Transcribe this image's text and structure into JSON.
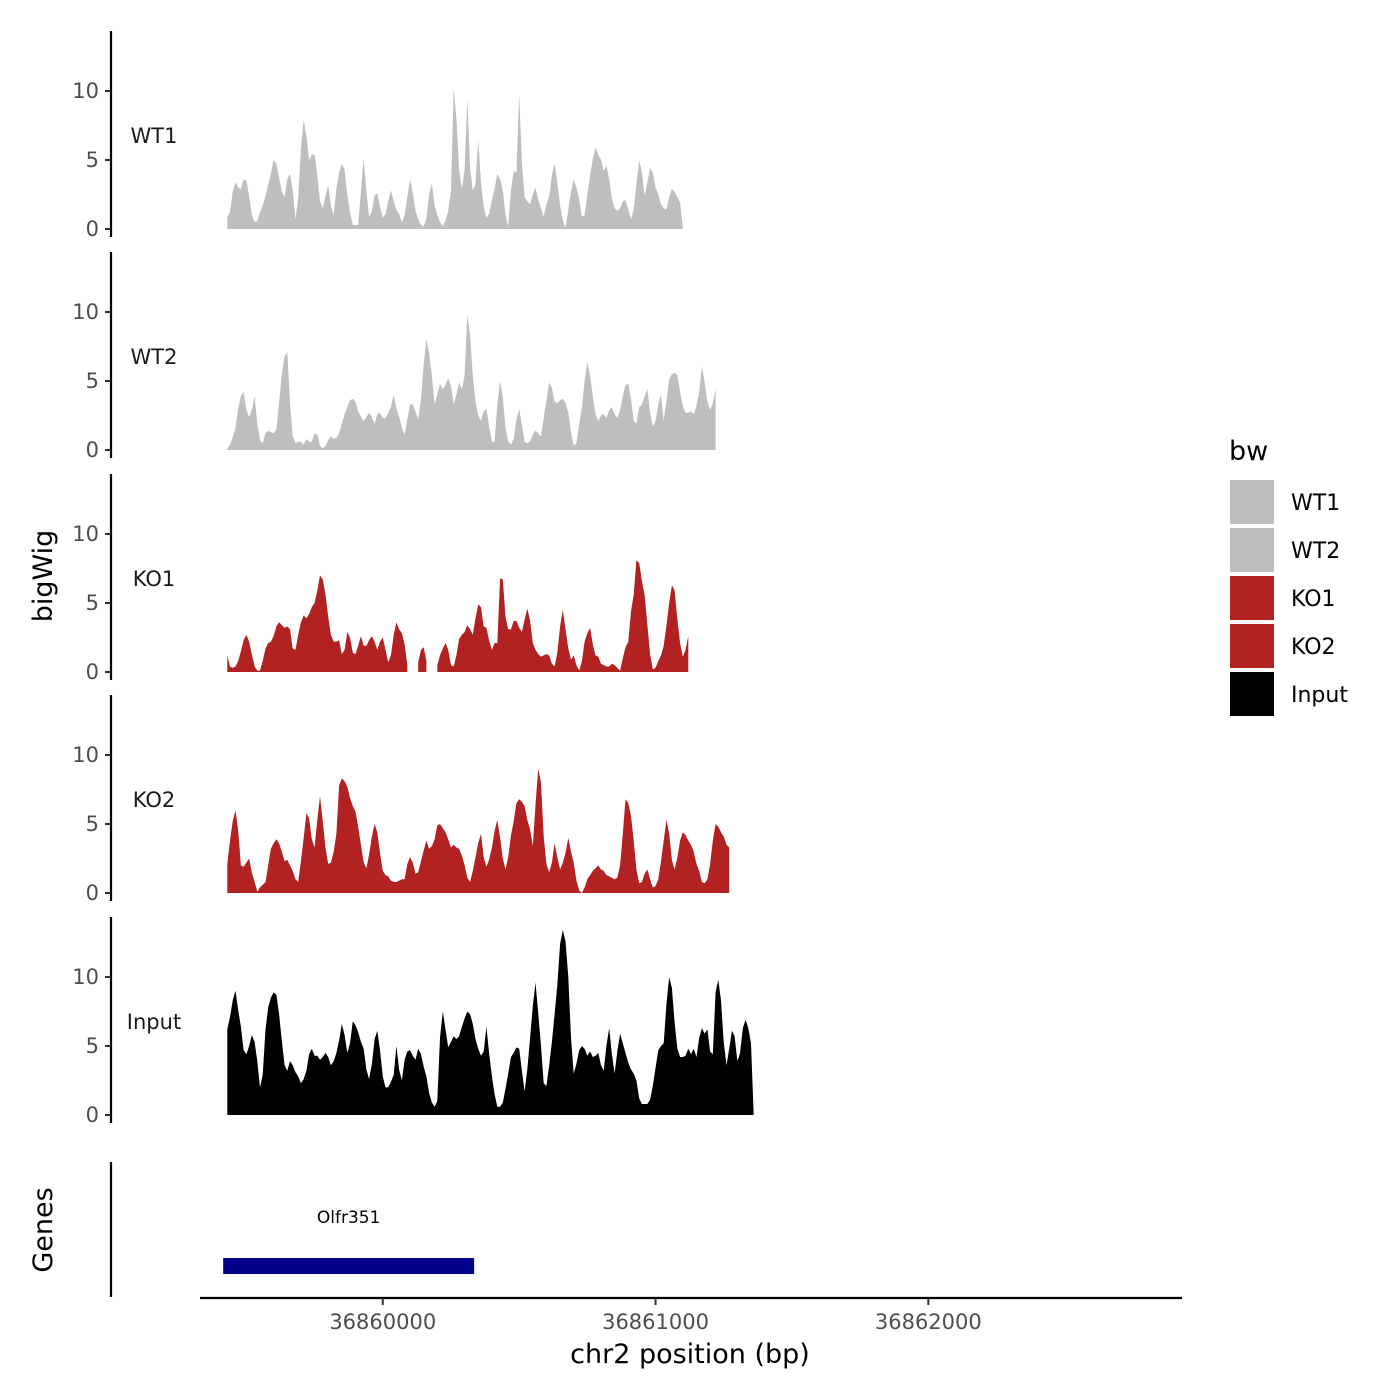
{
  "chart_data": {
    "type": "area",
    "title": "",
    "xlabel": "chr2 position (bp)",
    "ylabel": "bigWig",
    "genes_label": "Genes",
    "xlim": [
      36859330,
      36862930
    ],
    "x_ticks": [
      36860000,
      36861000,
      36862000
    ],
    "x_tick_labels": [
      "36860000",
      "36861000",
      "36862000"
    ],
    "ylim": [
      0,
      14
    ],
    "y_ticks": [
      0,
      5,
      10
    ],
    "y_tick_labels": [
      "0",
      "5",
      "10"
    ],
    "legend": {
      "title": "bw",
      "entries": [
        {
          "label": "WT1",
          "color": "#bebebe"
        },
        {
          "label": "WT2",
          "color": "#bebebe"
        },
        {
          "label": "KO1",
          "color": "#b22222"
        },
        {
          "label": "KO2",
          "color": "#b22222"
        },
        {
          "label": "Input",
          "color": "#000000"
        }
      ]
    },
    "x_start": 36859430,
    "x_step": 10,
    "series": [
      {
        "name": "WT1",
        "color": "#bebebe",
        "values": [
          0.9,
          1.2,
          2.7,
          3.4,
          3.0,
          2.9,
          3.6,
          3.5,
          2.4,
          1.0,
          0.5,
          0.6,
          1.2,
          1.7,
          2.4,
          3.2,
          4.0,
          5.0,
          4.7,
          3.7,
          2.7,
          2.3,
          3.6,
          4.0,
          2.8,
          0.7,
          2.3,
          5.8,
          7.9,
          6.7,
          5.0,
          5.4,
          5.4,
          3.9,
          2.0,
          1.5,
          2.4,
          3.2,
          1.7,
          1.0,
          2.9,
          4.1,
          4.7,
          4.3,
          2.5,
          1.2,
          0.3,
          0.3,
          0.3,
          2.7,
          5.1,
          2.7,
          0.9,
          1.3,
          2.4,
          2.6,
          1.6,
          0.8,
          1.1,
          2.0,
          2.8,
          2.0,
          1.4,
          1.1,
          0.5,
          1.0,
          2.3,
          3.6,
          2.6,
          1.3,
          0.7,
          0.3,
          0.2,
          0.8,
          2.5,
          3.3,
          1.7,
          1.0,
          0.5,
          0.2,
          0.6,
          1.3,
          2.8,
          10.2,
          8.0,
          4.3,
          2.9,
          4.3,
          9.5,
          4.4,
          2.8,
          3.3,
          6.5,
          3.4,
          1.6,
          0.8,
          1.1,
          2.1,
          2.9,
          4.0,
          3.6,
          2.8,
          1.0,
          0.2,
          2.8,
          4.2,
          4.1,
          9.7,
          4.8,
          2.3,
          2.0,
          1.8,
          2.5,
          3.0,
          2.1,
          1.5,
          0.9,
          1.8,
          2.4,
          3.9,
          4.7,
          3.4,
          1.7,
          0.6,
          0.1,
          1.4,
          2.7,
          3.6,
          3.0,
          2.1,
          0.9,
          1.0,
          2.5,
          3.9,
          5.1,
          5.9,
          5.4,
          5.0,
          4.2,
          4.6,
          3.6,
          2.2,
          1.5,
          1.3,
          1.5,
          2.0,
          2.1,
          1.4,
          0.7,
          1.4,
          3.2,
          5.0,
          4.1,
          2.4,
          3.4,
          4.4,
          4.1,
          3.0,
          2.5,
          1.8,
          1.5,
          1.4,
          2.3,
          2.9,
          2.7,
          2.3,
          1.9,
          0.1
        ]
      },
      {
        "name": "WT2",
        "color": "#bebebe",
        "values": [
          0.1,
          0.4,
          0.9,
          1.6,
          3.0,
          3.9,
          4.2,
          2.9,
          2.4,
          2.9,
          3.9,
          1.9,
          0.7,
          0.5,
          1.2,
          1.4,
          1.3,
          1.2,
          1.5,
          3.4,
          5.5,
          6.8,
          7.1,
          3.4,
          1.0,
          0.5,
          0.6,
          0.6,
          0.4,
          0.8,
          0.6,
          0.6,
          1.2,
          1.1,
          0.3,
          0.1,
          0.3,
          0.7,
          1.0,
          0.8,
          0.9,
          1.2,
          1.9,
          2.6,
          3.1,
          3.6,
          3.7,
          3.5,
          2.8,
          2.4,
          2.1,
          2.4,
          2.7,
          2.4,
          1.9,
          2.6,
          2.7,
          2.3,
          2.3,
          2.7,
          3.1,
          4.0,
          3.0,
          2.4,
          1.6,
          1.1,
          2.2,
          3.3,
          3.3,
          2.8,
          2.2,
          3.7,
          6.2,
          8.0,
          7.0,
          5.4,
          3.3,
          4.0,
          4.8,
          4.4,
          4.7,
          5.2,
          4.6,
          3.3,
          4.0,
          4.9,
          4.4,
          5.4,
          9.8,
          8.3,
          5.4,
          3.5,
          2.5,
          2.1,
          2.8,
          3.0,
          1.7,
          0.6,
          0.6,
          3.3,
          5.0,
          3.8,
          1.6,
          0.6,
          0.4,
          0.8,
          2.2,
          3.0,
          1.8,
          0.6,
          0.5,
          0.6,
          1.1,
          1.4,
          1.2,
          1.0,
          2.3,
          3.6,
          4.9,
          4.5,
          3.5,
          3.4,
          3.6,
          3.7,
          3.4,
          2.7,
          1.3,
          0.3,
          0.5,
          1.9,
          3.1,
          5.0,
          6.4,
          5.4,
          3.9,
          2.6,
          2.1,
          2.5,
          2.6,
          2.3,
          2.9,
          3.1,
          2.6,
          2.3,
          2.9,
          3.9,
          4.7,
          4.8,
          3.7,
          2.1,
          1.9,
          3.1,
          3.3,
          3.9,
          4.4,
          2.7,
          1.7,
          2.1,
          3.3,
          4.0,
          2.1,
          3.6,
          5.1,
          5.5,
          5.6,
          5.4,
          4.2,
          3.2,
          2.7,
          2.7,
          2.8,
          2.6,
          3.2,
          4.2,
          6.1,
          4.9,
          3.5,
          2.9,
          3.4,
          4.4
        ]
      },
      {
        "name": "KO1",
        "color": "#b22222",
        "values": [
          1.2,
          0.4,
          0.3,
          0.4,
          0.8,
          1.5,
          2.3,
          2.7,
          2.2,
          1.3,
          0.4,
          0.1,
          0.1,
          0.8,
          1.7,
          2.1,
          2.2,
          2.6,
          3.3,
          3.6,
          3.4,
          3.2,
          3.3,
          3.1,
          1.7,
          1.6,
          2.7,
          3.6,
          4.1,
          3.9,
          4.2,
          4.7,
          5.0,
          5.9,
          7.0,
          6.7,
          5.6,
          4.0,
          2.7,
          2.2,
          2.2,
          2.3,
          1.3,
          1.6,
          2.9,
          2.5,
          1.4,
          1.3,
          1.9,
          2.6,
          1.9,
          1.9,
          2.3,
          2.6,
          2.2,
          1.6,
          2.2,
          2.5,
          1.6,
          0.7,
          1.2,
          2.7,
          3.6,
          3.1,
          2.8,
          2.0,
          0.5,
          null,
          null,
          null,
          0.7,
          1.6,
          1.8,
          0.8,
          null,
          null,
          null,
          0.5,
          1.2,
          1.7,
          2.1,
          1.6,
          0.5,
          0.4,
          1.2,
          2.4,
          2.7,
          2.9,
          3.4,
          3.1,
          2.7,
          3.9,
          4.9,
          4.7,
          3.3,
          3.2,
          2.3,
          1.6,
          2.1,
          2.1,
          6.8,
          6.7,
          4.0,
          3.1,
          3.1,
          3.7,
          3.7,
          3.2,
          2.9,
          3.8,
          4.6,
          3.7,
          2.1,
          1.6,
          1.3,
          1.1,
          1.2,
          1.3,
          1.2,
          0.6,
          0.4,
          1.4,
          3.3,
          4.5,
          3.1,
          1.7,
          0.9,
          1.2,
          0.5,
          0.1,
          0.8,
          2.2,
          2.8,
          3.2,
          2.0,
          1.2,
          1.1,
          0.6,
          0.5,
          0.4,
          0.4,
          0.6,
          0.5,
          0.3,
          0.1,
          1.0,
          1.8,
          2.2,
          4.4,
          5.6,
          8.1,
          7.9,
          6.6,
          5.6,
          3.4,
          1.3,
          0.2,
          0.3,
          0.8,
          1.2,
          1.9,
          3.4,
          5.0,
          6.3,
          5.9,
          3.8,
          2.1,
          1.1,
          1.6,
          2.6
        ]
      },
      {
        "name": "KO2",
        "color": "#b22222",
        "values": [
          2.1,
          3.8,
          5.2,
          6.0,
          4.5,
          2.0,
          1.9,
          2.2,
          2.5,
          1.5,
          0.8,
          0.1,
          0.4,
          0.6,
          0.8,
          2.0,
          3.2,
          3.6,
          3.9,
          3.6,
          3.0,
          2.3,
          2.4,
          2.0,
          1.6,
          1.0,
          0.8,
          2.3,
          4.0,
          5.8,
          5.4,
          3.9,
          3.3,
          5.3,
          7.0,
          5.2,
          3.3,
          2.1,
          2.2,
          3.0,
          4.3,
          7.8,
          8.3,
          8.1,
          7.7,
          6.9,
          6.3,
          5.9,
          4.8,
          3.5,
          2.2,
          1.8,
          2.8,
          4.1,
          5.0,
          4.4,
          2.9,
          1.6,
          1.3,
          1.2,
          0.9,
          0.8,
          0.8,
          0.9,
          1.0,
          1.0,
          2.1,
          2.6,
          2.2,
          1.4,
          1.5,
          2.3,
          3.1,
          3.8,
          3.2,
          3.4,
          3.9,
          4.9,
          5.0,
          4.7,
          4.4,
          3.9,
          3.3,
          3.5,
          3.3,
          3.2,
          2.7,
          2.0,
          1.1,
          0.8,
          1.6,
          2.6,
          3.6,
          4.3,
          2.6,
          1.9,
          2.4,
          3.3,
          4.5,
          5.3,
          4.0,
          2.5,
          1.7,
          2.6,
          4.2,
          5.2,
          6.5,
          6.8,
          6.6,
          6.3,
          5.3,
          4.6,
          3.4,
          6.4,
          9.0,
          8.0,
          4.1,
          2.1,
          1.5,
          2.2,
          3.6,
          2.6,
          1.7,
          2.2,
          2.9,
          4.0,
          3.0,
          2.2,
          0.9,
          0.2,
          0.0,
          0.4,
          1.0,
          1.3,
          1.6,
          1.8,
          2.0,
          1.7,
          1.6,
          1.3,
          1.2,
          1.1,
          1.0,
          1.1,
          2.0,
          4.3,
          6.8,
          6.5,
          5.6,
          3.8,
          1.7,
          0.7,
          0.8,
          1.4,
          1.7,
          1.0,
          0.4,
          0.5,
          1.0,
          2.3,
          3.8,
          5.3,
          4.3,
          2.4,
          1.7,
          2.6,
          3.8,
          4.4,
          4.2,
          3.8,
          3.5,
          3.0,
          2.1,
          1.6,
          0.8,
          0.7,
          1.0,
          2.1,
          3.8,
          5.0,
          4.8,
          4.4,
          4.1,
          3.5,
          3.3
        ]
      },
      {
        "name": "Input",
        "color": "#000000",
        "values": [
          6.2,
          7.1,
          8.3,
          9.0,
          7.6,
          6.4,
          4.7,
          4.4,
          5.0,
          5.8,
          5.3,
          3.9,
          2.0,
          2.9,
          6.2,
          7.8,
          8.5,
          8.9,
          8.7,
          7.3,
          5.4,
          3.6,
          3.2,
          3.9,
          3.6,
          3.1,
          2.8,
          2.3,
          2.6,
          3.2,
          4.4,
          4.8,
          4.3,
          4.3,
          4.0,
          4.2,
          4.5,
          4.2,
          3.6,
          3.9,
          4.5,
          5.4,
          6.6,
          5.8,
          4.5,
          5.2,
          6.8,
          6.5,
          6.0,
          5.3,
          4.8,
          3.3,
          2.6,
          3.7,
          5.5,
          6.1,
          4.7,
          2.8,
          2.0,
          2.0,
          2.4,
          2.9,
          5.0,
          3.3,
          2.5,
          4.0,
          4.6,
          4.7,
          4.3,
          4.0,
          4.8,
          4.4,
          3.5,
          2.8,
          1.6,
          0.9,
          0.6,
          1.0,
          5.6,
          7.5,
          6.2,
          4.9,
          5.3,
          5.7,
          5.5,
          5.7,
          6.4,
          7.0,
          7.5,
          7.3,
          6.6,
          5.5,
          4.8,
          4.3,
          4.6,
          6.4,
          4.5,
          2.8,
          1.5,
          0.6,
          0.6,
          0.9,
          1.9,
          3.0,
          4.2,
          4.5,
          4.9,
          4.8,
          3.2,
          1.7,
          3.3,
          5.6,
          7.9,
          9.6,
          7.4,
          5.0,
          2.3,
          2.1,
          3.6,
          5.3,
          7.3,
          9.4,
          12.4,
          13.4,
          12.6,
          10.0,
          5.6,
          3.0,
          3.7,
          4.7,
          5.0,
          4.8,
          4.3,
          4.6,
          4.2,
          4.3,
          4.5,
          3.6,
          3.2,
          5.0,
          6.3,
          4.4,
          3.0,
          4.6,
          5.9,
          5.2,
          4.5,
          3.8,
          3.3,
          3.0,
          2.5,
          1.2,
          0.8,
          0.8,
          0.8,
          1.1,
          2.1,
          3.4,
          4.7,
          5.0,
          5.2,
          8.1,
          10.0,
          9.2,
          6.7,
          4.8,
          4.2,
          4.2,
          4.3,
          4.8,
          4.4,
          4.8,
          4.2,
          5.6,
          6.3,
          5.9,
          6.2,
          4.6,
          4.4,
          8.9,
          9.8,
          8.3,
          5.3,
          3.6,
          4.8,
          6.1,
          5.7,
          3.9,
          4.5,
          6.3,
          6.9,
          6.3,
          5.2,
          0.0
        ]
      }
    ],
    "genes": [
      {
        "name": "Olfr351",
        "start": 36859415,
        "end": 36860335,
        "color": "#00008b"
      }
    ]
  }
}
